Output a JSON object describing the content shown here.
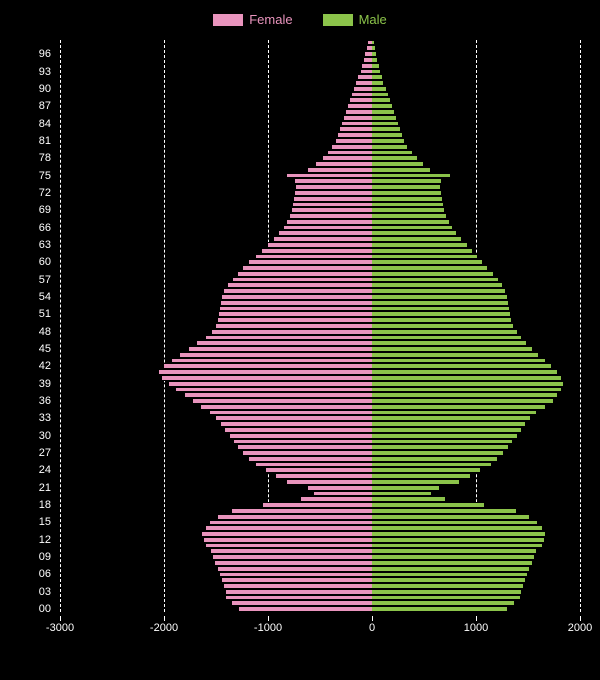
{
  "chart": {
    "type": "population-pyramid",
    "background_color": "#000000",
    "text_color": "#ffffff",
    "grid_color": "#ffffff",
    "grid_style": "dashed",
    "legend": {
      "items": [
        {
          "label": "Female",
          "color": "#e994bd"
        },
        {
          "label": "Male",
          "color": "#8bc34a"
        }
      ]
    },
    "x_axis": {
      "min": -3000,
      "max": 2000,
      "ticks": [
        -3000,
        -2000,
        -1000,
        0,
        1000,
        2000
      ],
      "labels": [
        "-3000",
        "-2000",
        "-1000",
        "0",
        "1000",
        "2000"
      ]
    },
    "y_axis": {
      "tick_step": 3,
      "labels": [
        "00",
        "03",
        "06",
        "09",
        "12",
        "15",
        "18",
        "21",
        "24",
        "27",
        "30",
        "33",
        "36",
        "39",
        "42",
        "45",
        "48",
        "51",
        "54",
        "57",
        "60",
        "63",
        "66",
        "69",
        "72",
        "75",
        "78",
        "81",
        "84",
        "87",
        "90",
        "93",
        "96"
      ]
    },
    "female_color": "#e994bd",
    "male_color": "#8bc34a",
    "ages": [
      0,
      1,
      2,
      3,
      4,
      5,
      6,
      7,
      8,
      9,
      10,
      11,
      12,
      13,
      14,
      15,
      16,
      17,
      18,
      19,
      20,
      21,
      22,
      23,
      24,
      25,
      26,
      27,
      28,
      29,
      30,
      31,
      32,
      33,
      34,
      35,
      36,
      37,
      38,
      39,
      40,
      41,
      42,
      43,
      44,
      45,
      46,
      47,
      48,
      49,
      50,
      51,
      52,
      53,
      54,
      55,
      56,
      57,
      58,
      59,
      60,
      61,
      62,
      63,
      64,
      65,
      66,
      67,
      68,
      69,
      70,
      71,
      72,
      73,
      74,
      75,
      76,
      77,
      78,
      79,
      80,
      81,
      82,
      83,
      84,
      85,
      86,
      87,
      88,
      89,
      90,
      91,
      92,
      93,
      94,
      95,
      96,
      97,
      98
    ],
    "female": [
      1280,
      1350,
      1400,
      1400,
      1420,
      1440,
      1460,
      1480,
      1510,
      1530,
      1550,
      1600,
      1620,
      1630,
      1600,
      1560,
      1480,
      1350,
      1050,
      680,
      560,
      620,
      820,
      920,
      1020,
      1120,
      1180,
      1240,
      1290,
      1330,
      1370,
      1410,
      1450,
      1500,
      1560,
      1640,
      1720,
      1800,
      1880,
      1950,
      2020,
      2050,
      2000,
      1920,
      1850,
      1760,
      1680,
      1600,
      1540,
      1500,
      1480,
      1470,
      1460,
      1450,
      1440,
      1420,
      1380,
      1340,
      1290,
      1240,
      1180,
      1120,
      1060,
      1000,
      940,
      890,
      850,
      820,
      790,
      770,
      760,
      750,
      740,
      730,
      740,
      820,
      620,
      540,
      470,
      420,
      380,
      350,
      330,
      310,
      290,
      270,
      250,
      230,
      210,
      190,
      170,
      150,
      130,
      110,
      95,
      80,
      65,
      50,
      35
    ],
    "male": [
      1300,
      1370,
      1420,
      1430,
      1450,
      1470,
      1490,
      1510,
      1540,
      1560,
      1580,
      1630,
      1650,
      1660,
      1630,
      1590,
      1510,
      1380,
      1080,
      700,
      570,
      640,
      840,
      940,
      1040,
      1140,
      1200,
      1260,
      1310,
      1350,
      1390,
      1430,
      1470,
      1520,
      1580,
      1660,
      1740,
      1780,
      1820,
      1840,
      1820,
      1780,
      1720,
      1660,
      1600,
      1540,
      1480,
      1430,
      1390,
      1360,
      1340,
      1330,
      1320,
      1310,
      1300,
      1280,
      1250,
      1210,
      1160,
      1110,
      1060,
      1010,
      960,
      910,
      860,
      810,
      770,
      740,
      710,
      690,
      680,
      670,
      660,
      650,
      660,
      750,
      560,
      490,
      430,
      380,
      340,
      310,
      290,
      270,
      250,
      230,
      210,
      190,
      170,
      150,
      130,
      110,
      95,
      80,
      65,
      50,
      40,
      30,
      20
    ]
  }
}
